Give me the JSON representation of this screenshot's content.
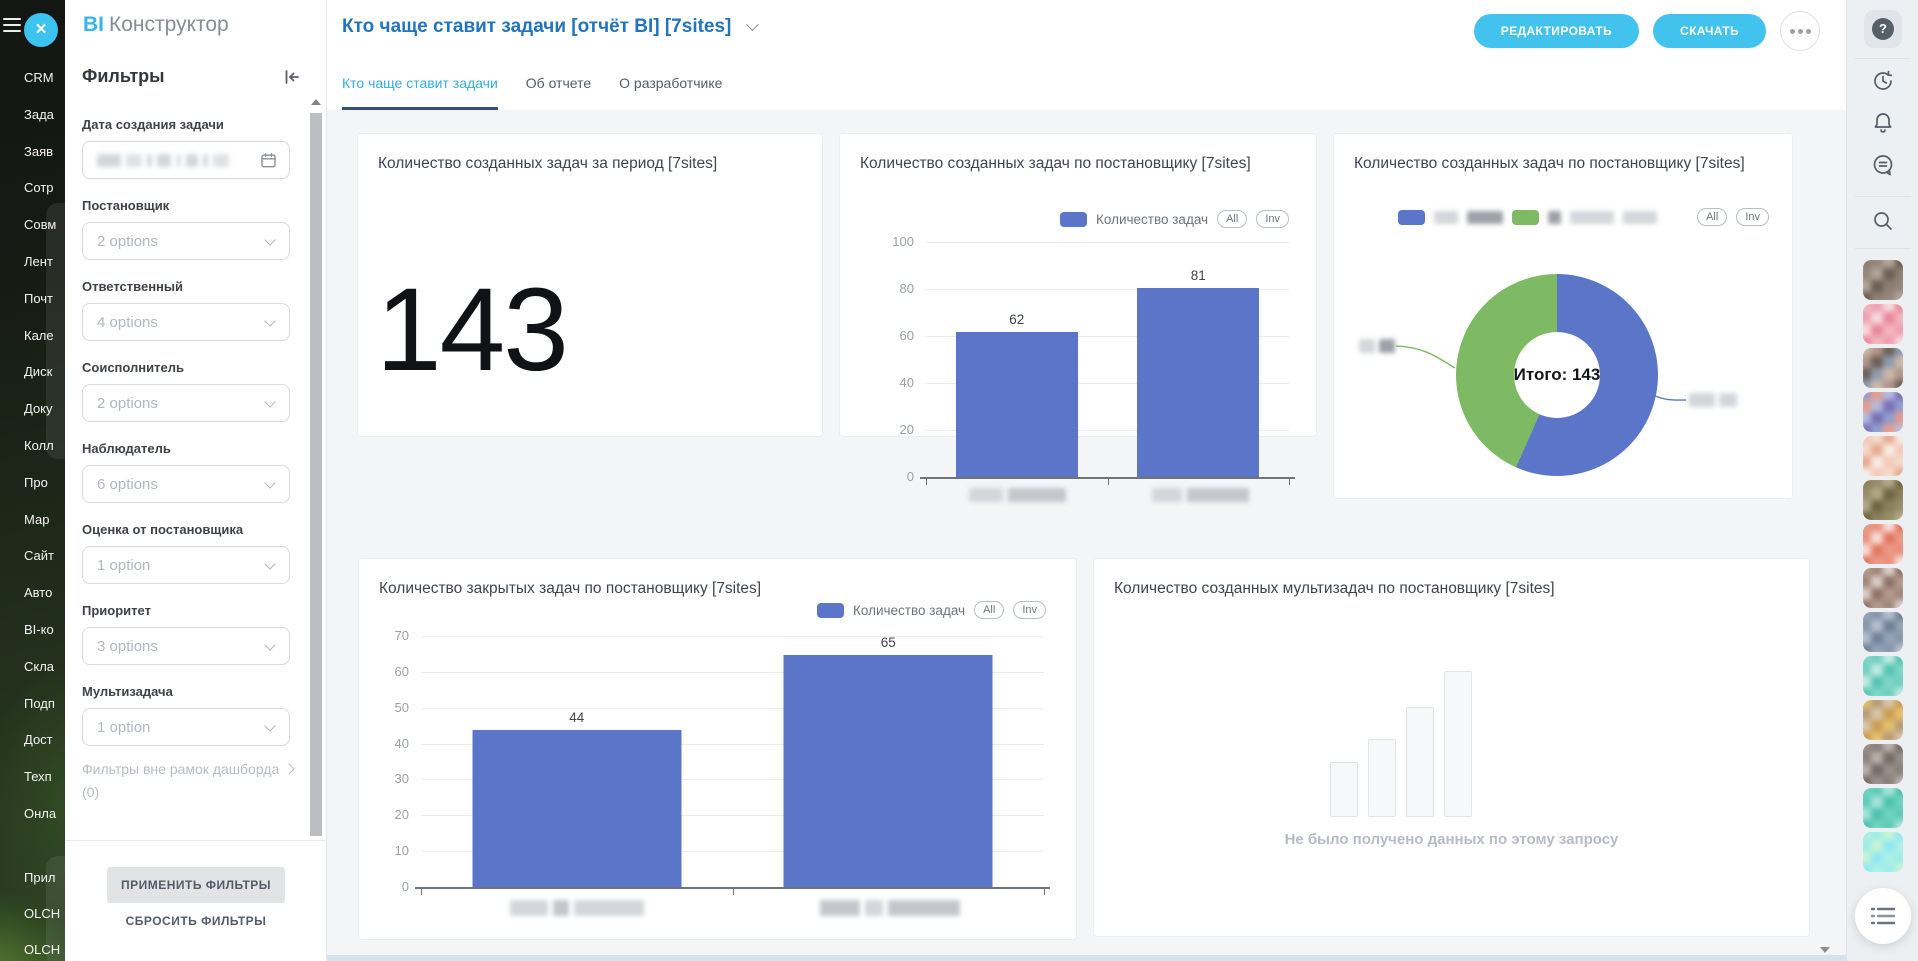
{
  "app": {
    "logo_bi": "BI",
    "logo_rest": "Конструктор"
  },
  "left_rail": {
    "items": [
      "CRM",
      "Зада",
      "Заяв",
      "Сотр",
      "Совм",
      "Лент",
      "Почт",
      "Кале",
      "Диск",
      "Доку",
      "Колл",
      "Про",
      "Мар",
      "Сайт",
      "Авто",
      "BI-ко",
      "Скла",
      "Подп",
      "Дост",
      "Техп",
      "Онла"
    ],
    "bottom_items": [
      "Прил",
      "OLCH",
      "OLCH"
    ]
  },
  "filters": {
    "heading": "Фильтры",
    "fields": [
      {
        "label": "Дата создания задачи",
        "type": "date",
        "value": ""
      },
      {
        "label": "Постановщик",
        "type": "select",
        "value": "2 options"
      },
      {
        "label": "Ответственный",
        "type": "select",
        "value": "4 options"
      },
      {
        "label": "Соисполнитель",
        "type": "select",
        "value": "2 options"
      },
      {
        "label": "Наблюдатель",
        "type": "select",
        "value": "6 options"
      },
      {
        "label": "Оценка от постановщика",
        "type": "select",
        "value": "1 option"
      },
      {
        "label": "Приоритет",
        "type": "select",
        "value": "3 options"
      },
      {
        "label": "Мультизадача",
        "type": "select",
        "value": "1 option"
      }
    ],
    "outer_link": "Фильтры вне рамок дашборда (0)",
    "apply": "ПРИМЕНИТЬ ФИЛЬТРЫ",
    "reset": "СБРОСИТЬ ФИЛЬТРЫ"
  },
  "header": {
    "title": "Кто чаще ставит задачи [отчёт BI] [7sites]",
    "edit_button": "РЕДАКТИРОВАТЬ",
    "download_button": "СКАЧАТЬ"
  },
  "tabs": [
    {
      "label": "Кто чаще ставит задачи",
      "active": true
    },
    {
      "label": "Об отчете",
      "active": false
    },
    {
      "label": "О разработчике",
      "active": false
    }
  ],
  "legend_pills": [
    "All",
    "Inv"
  ],
  "chart_data": [
    {
      "type": "kpi",
      "title": "Количество созданных задач за период [7sites]",
      "value": "143"
    },
    {
      "type": "bar",
      "title": "Количество созданных задач по постановщику [7sites]",
      "legend": "Количество задач",
      "categories": [
        "",
        ""
      ],
      "values": [
        62,
        81
      ],
      "ylim": [
        0,
        100
      ],
      "yticks": [
        0,
        20,
        40,
        60,
        80,
        100
      ],
      "bar_color": "#5b76c8",
      "grid": true,
      "legend_position": "top-right"
    },
    {
      "type": "donut",
      "title": "Количество созданных задач по постановщику [7sites]",
      "center_label": "Итого: 143",
      "total": 143,
      "series": [
        {
          "name": "",
          "value": 81,
          "color": "#5b76c8"
        },
        {
          "name": "",
          "value": 62,
          "color": "#7eba64"
        }
      ]
    },
    {
      "type": "bar",
      "title": "Количество закрытых задач по постановщику [7sites]",
      "legend": "Количество задач",
      "categories": [
        "",
        ""
      ],
      "values": [
        44,
        65
      ],
      "ylim": [
        0,
        70
      ],
      "yticks": [
        0,
        10,
        20,
        30,
        40,
        50,
        60,
        70
      ],
      "bar_color": "#5b76c8",
      "grid": true,
      "legend_position": "top-right"
    },
    {
      "type": "empty",
      "title": "Количество созданных мультизадач по постановщику [7sites]",
      "message": "Не было получено данных по этому запросу"
    }
  ],
  "right_rail": {
    "help_label": "?",
    "icons": [
      "help-icon",
      "time-tracking-icon",
      "bell-icon",
      "chat-icon",
      "search-icon",
      "menu-icon"
    ],
    "avatars": [
      {
        "palette": [
          "#8d7f72",
          "#6b5d52",
          "#b3a496",
          "#93867b"
        ]
      },
      {
        "palette": [
          "#f2b6c1",
          "#e98798",
          "#f7d9de",
          "#ef9fae"
        ]
      },
      {
        "palette": [
          "#cbb9a8",
          "#8e9bb0",
          "#6d5f55",
          "#b0958a"
        ]
      },
      {
        "palette": [
          "#8e9fd0",
          "#7a6fb5",
          "#b3bce0",
          "#e89a88"
        ]
      },
      {
        "palette": [
          "#f3c9b8",
          "#f8ede5",
          "#e8a98f",
          "#f5d9cb"
        ]
      },
      {
        "palette": [
          "#8a805b",
          "#6e6442",
          "#b3a987",
          "#978c66"
        ]
      },
      {
        "palette": [
          "#e89a88",
          "#e4765f",
          "#f5ded7",
          "#eb8e7a"
        ]
      },
      {
        "palette": [
          "#b59a8c",
          "#8d7265",
          "#d9cfc7",
          "#a08579"
        ]
      },
      {
        "palette": [
          "#94a3b5",
          "#6f8096",
          "#b4c0cd",
          "#8496a9"
        ]
      },
      {
        "palette": [
          "#7fd6c8",
          "#55c3b2",
          "#c2ebe3",
          "#6fcfbf"
        ]
      },
      {
        "palette": [
          "#e5c06e",
          "#c89d52",
          "#d8c6a8",
          "#b59a76"
        ]
      },
      {
        "palette": [
          "#9a8f8a",
          "#756a66",
          "#b8b0ac",
          "#878078"
        ]
      },
      {
        "palette": [
          "#6ed3c0",
          "#4ec2ad",
          "#a5e5d9",
          "#5fcab7"
        ]
      },
      {
        "palette": [
          "#aef0e3",
          "#8ee8f5",
          "#c8f3d2",
          "#9ceee8"
        ]
      }
    ]
  },
  "colors": {
    "accent": "#42c3ee",
    "link_blue": "#2274bd",
    "tab_active": "#35aede",
    "tab_underline": "#33517a",
    "bar_blue": "#5b76c8",
    "pie_green": "#7eba64"
  }
}
